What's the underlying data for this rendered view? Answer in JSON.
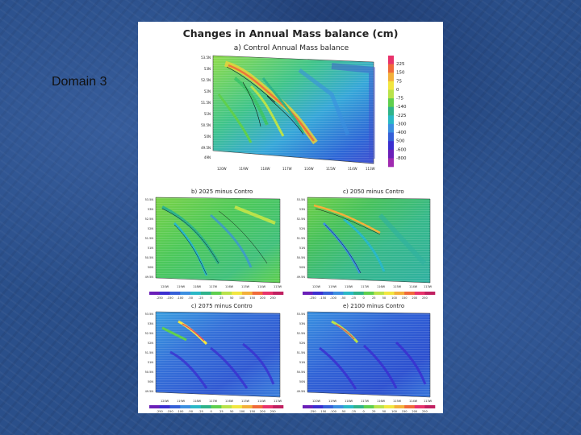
{
  "slide": {
    "label": "Domain 3"
  },
  "figure": {
    "title": "Changes in Annual Mass balance (cm)",
    "panels": [
      {
        "id": "a",
        "label": "a) Control Annual Mass balance"
      },
      {
        "id": "b",
        "label": "b) 2025 minus Contro"
      },
      {
        "id": "c",
        "label": "c) 2050 minus Contro"
      },
      {
        "id": "d",
        "label": "c) 2075 minus Contro"
      },
      {
        "id": "e",
        "label": "e) 2100 minus Contro"
      }
    ],
    "top_colorbar": {
      "labels": [
        "225",
        "150",
        "75",
        "0",
        "-75",
        "-140",
        "-225",
        "-300",
        "-400",
        "500",
        "-600",
        "-800"
      ],
      "colors": [
        "#e8336b",
        "#f06a3a",
        "#f3b03a",
        "#f2e640",
        "#b9e24a",
        "#5fcf4e",
        "#2fb38a",
        "#2ab8c6",
        "#3b8fe0",
        "#3560d8",
        "#3a2fd0",
        "#6a1fb8",
        "#a02ab0"
      ]
    },
    "diff_colorbar": {
      "labels": [
        "-250",
        "-150",
        "-100",
        "-50",
        "-25",
        "0",
        "25",
        "50",
        "100",
        "150",
        "200",
        "250"
      ],
      "colors": [
        "#6a1fb8",
        "#3a2fd0",
        "#3560d8",
        "#3b8fe0",
        "#2ab8c6",
        "#2fb38a",
        "#5fcf4e",
        "#b9e24a",
        "#f2e640",
        "#f3b03a",
        "#f06a3a",
        "#e8336b",
        "#c02060"
      ]
    }
  }
}
